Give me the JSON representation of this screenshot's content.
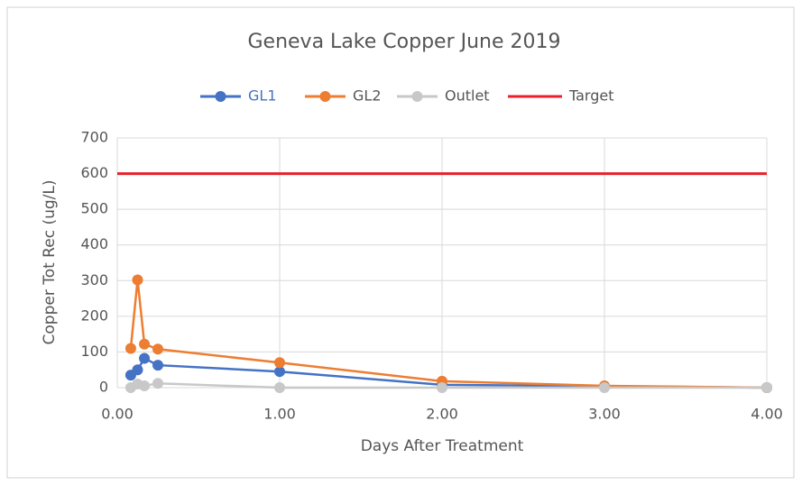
{
  "chart_data": {
    "type": "line",
    "title": "Geneva Lake Copper June 2019",
    "xlabel": "Days After Treatment",
    "ylabel": "Copper Tot Rec (ug/L)",
    "xlim": [
      0,
      4
    ],
    "ylim": [
      0,
      700
    ],
    "xticks": [
      {
        "value": 0,
        "label": "0.00"
      },
      {
        "value": 1,
        "label": "1.00"
      },
      {
        "value": 2,
        "label": "2.00"
      },
      {
        "value": 3,
        "label": "3.00"
      },
      {
        "value": 4,
        "label": "4.00"
      }
    ],
    "yticks": [
      0,
      100,
      200,
      300,
      400,
      500,
      600,
      700
    ],
    "grid": true,
    "legend": "top",
    "series": [
      {
        "name": "GL1",
        "color": "#4472c4",
        "markers": true,
        "x": [
          0.083,
          0.125,
          0.167,
          0.25,
          1,
          2,
          4
        ],
        "values": [
          35,
          50,
          82,
          63,
          45,
          8,
          0
        ]
      },
      {
        "name": "GL2",
        "color": "#ed7d31",
        "markers": true,
        "x": [
          0.083,
          0.125,
          0.167,
          0.25,
          1,
          2,
          3,
          4
        ],
        "values": [
          110,
          302,
          122,
          108,
          70,
          18,
          5,
          0
        ]
      },
      {
        "name": "Outlet",
        "color": "#c8c8c8",
        "markers": true,
        "x": [
          0.083,
          0.125,
          0.167,
          0.25,
          1,
          2,
          3,
          4
        ],
        "values": [
          0,
          10,
          5,
          12,
          0,
          0,
          0,
          0
        ]
      },
      {
        "name": "Target",
        "color": "#e8202a",
        "markers": false,
        "x": [
          0,
          4
        ],
        "values": [
          600,
          600
        ]
      }
    ]
  }
}
